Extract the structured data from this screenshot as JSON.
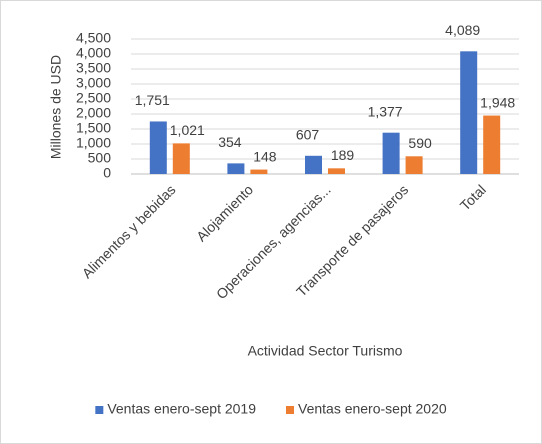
{
  "chart_data": {
    "type": "bar",
    "x_label": "Actividad Sector Turismo",
    "y_label": "Millones de USD",
    "categories": [
      "Alimentos y bebidas",
      "Alojamiento",
      "Operaciones, agencias...",
      "Transporte de pasajeros",
      "Total"
    ],
    "series": [
      {
        "name": "Ventas enero-sept 2019",
        "color": "#4472c4",
        "values": [
          1751,
          354,
          607,
          1377,
          4089
        ],
        "value_labels": [
          "1,751",
          "354",
          "607",
          "1,377",
          "4,089"
        ]
      },
      {
        "name": "Ventas enero-sept 2020",
        "color": "#ed7d31",
        "values": [
          1021,
          148,
          189,
          590,
          1948
        ],
        "value_labels": [
          "1,021",
          "148",
          "189",
          "590",
          "1,948"
        ]
      }
    ],
    "ylim": [
      0,
      4500
    ],
    "yticks": [
      0,
      {
        "value": 500,
        "label": "500"
      },
      {
        "value": 1000,
        "label": "1,000"
      },
      {
        "value": 1500,
        "label": "1,500"
      },
      {
        "value": 2000,
        "label": "2,000"
      },
      {
        "value": 2500,
        "label": "2,500"
      },
      {
        "value": 3000,
        "label": "3,000"
      },
      {
        "value": 3500,
        "label": "3,500"
      },
      {
        "value": 4000,
        "label": "4,000"
      },
      {
        "value": 4500,
        "label": "4,500"
      }
    ],
    "grid": true,
    "legend": "bottom"
  }
}
